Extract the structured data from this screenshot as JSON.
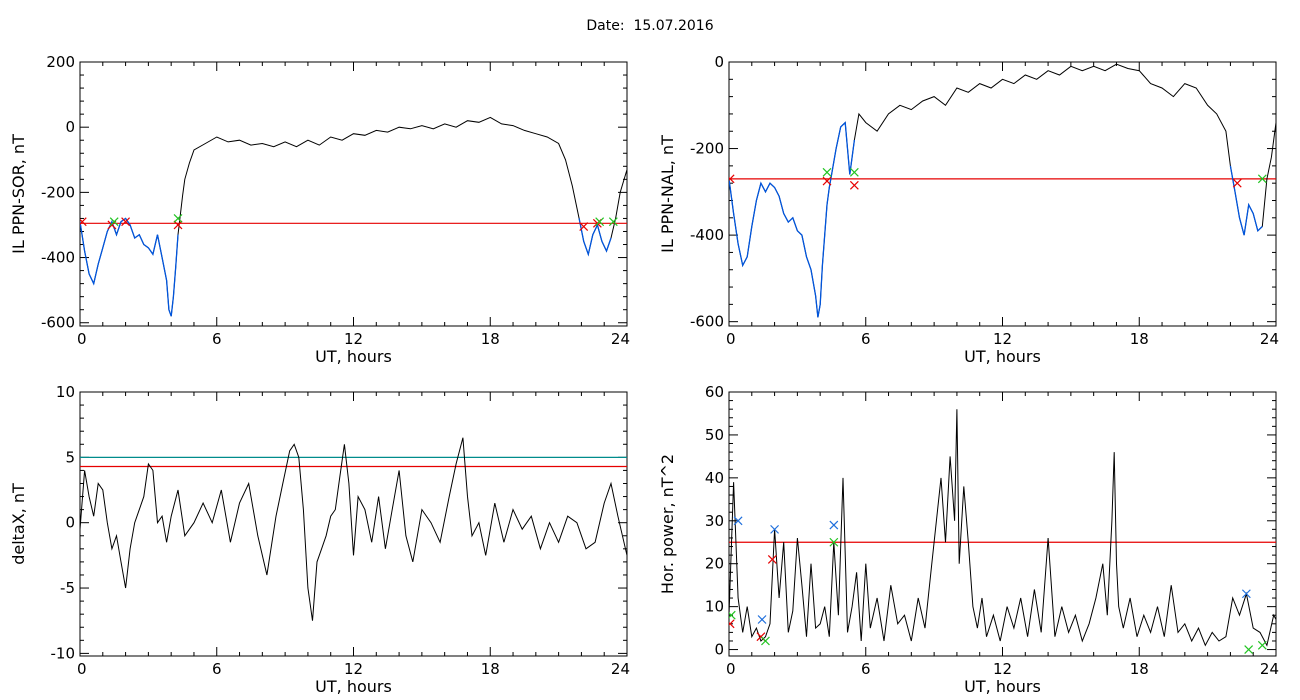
{
  "header": {
    "date_label": "Date:",
    "date_value": "15.07.2016"
  },
  "colors": {
    "trace": "#000000",
    "threshold": "#e60000",
    "threshold_upper": "#008c8c",
    "dip": "#0055dd",
    "marker_red": "#e60000",
    "marker_green": "#22c422",
    "marker_blue": "#1f6fdc"
  },
  "chart_data": [
    {
      "id": "sor",
      "type": "line",
      "xlabel": "UT, hours",
      "ylabel": "IL PPN-SOR, nT",
      "xlim": [
        0,
        24
      ],
      "ylim": [
        -610,
        200
      ],
      "xticks": [
        0,
        6,
        12,
        18,
        24
      ],
      "yticks": [
        200,
        0,
        -200,
        -400,
        -600
      ],
      "threshold": -295,
      "series": {
        "x": [
          0,
          0.2,
          0.4,
          0.6,
          0.8,
          1.0,
          1.2,
          1.4,
          1.6,
          1.8,
          2.0,
          2.2,
          2.4,
          2.6,
          2.8,
          3.0,
          3.2,
          3.4,
          3.6,
          3.8,
          3.9,
          4.0,
          4.1,
          4.2,
          4.3,
          4.4,
          4.5,
          4.6,
          4.8,
          5.0,
          5.5,
          6.0,
          6.5,
          7.0,
          7.5,
          8.0,
          8.5,
          9.0,
          9.5,
          10.0,
          10.5,
          11.0,
          11.5,
          12.0,
          12.5,
          13.0,
          13.5,
          14.0,
          14.5,
          15.0,
          15.5,
          16.0,
          16.5,
          17.0,
          17.5,
          18.0,
          18.5,
          19.0,
          19.5,
          20.0,
          20.5,
          21.0,
          21.3,
          21.6,
          21.9,
          22.1,
          22.3,
          22.5,
          22.7,
          22.9,
          23.1,
          23.3,
          23.5,
          23.7,
          24.0
        ],
        "y": [
          -290,
          -380,
          -450,
          -480,
          -420,
          -370,
          -320,
          -290,
          -330,
          -290,
          -280,
          -300,
          -340,
          -330,
          -360,
          -370,
          -390,
          -330,
          -400,
          -470,
          -560,
          -580,
          -520,
          -430,
          -330,
          -270,
          -210,
          -160,
          -110,
          -70,
          -50,
          -30,
          -45,
          -40,
          -55,
          -50,
          -60,
          -45,
          -60,
          -40,
          -55,
          -30,
          -40,
          -20,
          -25,
          -10,
          -15,
          0,
          -5,
          5,
          -5,
          10,
          0,
          20,
          15,
          30,
          10,
          5,
          -10,
          -20,
          -30,
          -50,
          -100,
          -180,
          -280,
          -350,
          -390,
          -330,
          -300,
          -350,
          -380,
          -340,
          -280,
          -200,
          -130
        ]
      },
      "dips": [
        [
          0,
          4.3
        ],
        [
          21.9,
          23.4
        ]
      ],
      "markers": [
        {
          "x": 0.1,
          "y": -290,
          "color": "red"
        },
        {
          "x": 1.4,
          "y": -300,
          "color": "red"
        },
        {
          "x": 1.5,
          "y": -290,
          "color": "green"
        },
        {
          "x": 2.0,
          "y": -290,
          "color": "red"
        },
        {
          "x": 4.3,
          "y": -300,
          "color": "red"
        },
        {
          "x": 4.3,
          "y": -280,
          "color": "green"
        },
        {
          "x": 22.1,
          "y": -305,
          "color": "red"
        },
        {
          "x": 22.7,
          "y": -295,
          "color": "red"
        },
        {
          "x": 22.8,
          "y": -290,
          "color": "green"
        },
        {
          "x": 23.4,
          "y": -290,
          "color": "green"
        }
      ]
    },
    {
      "id": "nal",
      "type": "line",
      "xlabel": "UT, hours",
      "ylabel": "IL PPN-NAL, nT",
      "xlim": [
        0,
        24
      ],
      "ylim": [
        -610,
        0
      ],
      "xticks": [
        0,
        6,
        12,
        18,
        24
      ],
      "yticks": [
        0,
        -200,
        -400,
        -600
      ],
      "threshold": -270,
      "series": {
        "x": [
          0,
          0.2,
          0.4,
          0.6,
          0.8,
          1.0,
          1.2,
          1.4,
          1.6,
          1.8,
          2.0,
          2.2,
          2.4,
          2.6,
          2.8,
          3.0,
          3.2,
          3.4,
          3.6,
          3.8,
          3.9,
          4.0,
          4.1,
          4.2,
          4.3,
          4.4,
          4.5,
          4.7,
          4.9,
          5.1,
          5.3,
          5.5,
          5.7,
          6.0,
          6.5,
          7.0,
          7.5,
          8.0,
          8.5,
          9.0,
          9.5,
          10.0,
          10.5,
          11.0,
          11.5,
          12.0,
          12.5,
          13.0,
          13.5,
          14.0,
          14.5,
          15.0,
          15.5,
          16.0,
          16.5,
          17.0,
          17.5,
          18.0,
          18.5,
          19.0,
          19.5,
          20.0,
          20.5,
          21.0,
          21.4,
          21.8,
          22.0,
          22.2,
          22.4,
          22.6,
          22.8,
          23.0,
          23.2,
          23.4,
          23.6,
          23.8,
          24.0
        ],
        "y": [
          -270,
          -350,
          -420,
          -470,
          -450,
          -380,
          -320,
          -280,
          -300,
          -280,
          -290,
          -310,
          -350,
          -370,
          -360,
          -390,
          -400,
          -450,
          -480,
          -540,
          -590,
          -560,
          -470,
          -400,
          -330,
          -290,
          -260,
          -200,
          -150,
          -140,
          -260,
          -180,
          -120,
          -140,
          -160,
          -120,
          -100,
          -110,
          -90,
          -80,
          -100,
          -60,
          -70,
          -50,
          -60,
          -40,
          -50,
          -30,
          -40,
          -20,
          -30,
          -10,
          -20,
          -10,
          -20,
          -5,
          -15,
          -20,
          -50,
          -60,
          -80,
          -50,
          -60,
          -100,
          -120,
          -160,
          -240,
          -300,
          -360,
          -400,
          -330,
          -350,
          -390,
          -380,
          -270,
          -220,
          -140
        ]
      },
      "dips": [
        [
          0,
          5.5
        ],
        [
          21.9,
          23.4
        ]
      ],
      "markers": [
        {
          "x": 0.05,
          "y": -270,
          "color": "red"
        },
        {
          "x": 4.3,
          "y": -275,
          "color": "red"
        },
        {
          "x": 4.3,
          "y": -255,
          "color": "green"
        },
        {
          "x": 5.5,
          "y": -285,
          "color": "red"
        },
        {
          "x": 5.5,
          "y": -255,
          "color": "green"
        },
        {
          "x": 22.3,
          "y": -280,
          "color": "red"
        },
        {
          "x": 23.4,
          "y": -270,
          "color": "green"
        }
      ]
    },
    {
      "id": "deltax",
      "type": "line",
      "xlabel": "UT, hours",
      "ylabel": "deltaX, nT",
      "xlim": [
        0,
        24
      ],
      "ylim": [
        -10.2,
        10
      ],
      "xticks": [
        0,
        6,
        12,
        18,
        24
      ],
      "yticks": [
        10,
        5,
        0,
        -5,
        -10
      ],
      "threshold": 4.3,
      "threshold_upper": 5.0,
      "series": {
        "x": [
          0,
          0.2,
          0.4,
          0.6,
          0.8,
          1.0,
          1.2,
          1.4,
          1.6,
          1.8,
          2.0,
          2.2,
          2.4,
          2.6,
          2.8,
          3.0,
          3.2,
          3.4,
          3.6,
          3.8,
          4.0,
          4.3,
          4.6,
          5.0,
          5.4,
          5.8,
          6.2,
          6.6,
          7.0,
          7.4,
          7.8,
          8.2,
          8.6,
          8.9,
          9.2,
          9.4,
          9.6,
          9.8,
          10.0,
          10.2,
          10.4,
          10.6,
          10.8,
          11.0,
          11.2,
          11.4,
          11.6,
          11.8,
          12.0,
          12.2,
          12.5,
          12.8,
          13.1,
          13.4,
          13.7,
          14.0,
          14.3,
          14.6,
          15.0,
          15.4,
          15.8,
          16.2,
          16.5,
          16.8,
          17.0,
          17.2,
          17.5,
          17.8,
          18.2,
          18.6,
          19.0,
          19.4,
          19.8,
          20.2,
          20.6,
          21.0,
          21.4,
          21.8,
          22.2,
          22.6,
          23.0,
          23.3,
          23.6,
          24.0
        ],
        "y": [
          -0.5,
          4.0,
          2.0,
          0.5,
          3.0,
          2.5,
          0.0,
          -2.0,
          -1.0,
          -3.0,
          -5.0,
          -2.0,
          0.0,
          1.0,
          2.0,
          4.5,
          4.0,
          0.0,
          0.5,
          -1.5,
          0.5,
          2.5,
          -1.0,
          0.0,
          1.5,
          0.0,
          2.5,
          -1.5,
          1.5,
          3.0,
          -1.0,
          -4.0,
          0.5,
          3.0,
          5.5,
          6.0,
          5.0,
          1.0,
          -5.0,
          -7.5,
          -3.0,
          -2.0,
          -1.0,
          0.5,
          1.0,
          3.5,
          6.0,
          3.0,
          -2.5,
          2.0,
          1.0,
          -1.5,
          2.0,
          -2.0,
          1.0,
          4.0,
          -1.0,
          -3.0,
          1.0,
          0.0,
          -1.5,
          2.0,
          4.5,
          6.5,
          2.0,
          -1.0,
          0.0,
          -2.5,
          1.5,
          -1.5,
          1.0,
          -0.5,
          0.5,
          -2.0,
          0.0,
          -1.5,
          0.5,
          0.0,
          -2.0,
          -1.5,
          1.5,
          3.0,
          0.5,
          -2.5
        ]
      },
      "dips": [],
      "markers": []
    },
    {
      "id": "hpower",
      "type": "line",
      "xlabel": "UT, hours",
      "ylabel": "Hor. power, nT^2",
      "xlim": [
        0,
        24
      ],
      "ylim": [
        -1.5,
        60
      ],
      "xticks": [
        0,
        6,
        12,
        18,
        24
      ],
      "yticks": [
        60,
        50,
        40,
        30,
        20,
        10,
        0
      ],
      "threshold": 25,
      "series": {
        "x": [
          0,
          0.2,
          0.4,
          0.6,
          0.8,
          1.0,
          1.2,
          1.4,
          1.6,
          1.8,
          2.0,
          2.2,
          2.4,
          2.6,
          2.8,
          3.0,
          3.2,
          3.4,
          3.6,
          3.8,
          4.0,
          4.2,
          4.4,
          4.6,
          4.8,
          5.0,
          5.2,
          5.4,
          5.6,
          5.8,
          6.0,
          6.2,
          6.5,
          6.8,
          7.1,
          7.4,
          7.7,
          8.0,
          8.3,
          8.6,
          8.9,
          9.1,
          9.3,
          9.5,
          9.7,
          9.9,
          10.0,
          10.1,
          10.3,
          10.5,
          10.7,
          10.9,
          11.1,
          11.3,
          11.6,
          11.9,
          12.2,
          12.5,
          12.8,
          13.1,
          13.4,
          13.7,
          14.0,
          14.3,
          14.6,
          14.9,
          15.2,
          15.5,
          15.8,
          16.1,
          16.4,
          16.6,
          16.8,
          16.9,
          17.0,
          17.1,
          17.3,
          17.6,
          17.9,
          18.2,
          18.5,
          18.8,
          19.1,
          19.4,
          19.7,
          20.0,
          20.3,
          20.6,
          20.9,
          21.2,
          21.5,
          21.8,
          22.1,
          22.4,
          22.7,
          23.0,
          23.3,
          23.6,
          23.9,
          24.0
        ],
        "y": [
          8,
          39,
          12,
          4,
          10,
          3,
          5,
          2,
          3,
          6,
          28,
          12,
          25,
          4,
          9,
          26,
          15,
          3,
          20,
          5,
          6,
          10,
          3,
          25,
          8,
          40,
          4,
          10,
          18,
          2,
          20,
          5,
          12,
          2,
          15,
          6,
          8,
          2,
          12,
          5,
          20,
          30,
          40,
          25,
          45,
          30,
          56,
          20,
          38,
          25,
          10,
          5,
          12,
          3,
          8,
          2,
          10,
          5,
          12,
          3,
          14,
          4,
          26,
          3,
          10,
          4,
          8,
          2,
          6,
          12,
          20,
          8,
          30,
          46,
          20,
          10,
          5,
          12,
          3,
          8,
          4,
          10,
          3,
          15,
          4,
          6,
          2,
          5,
          1,
          4,
          2,
          3,
          12,
          8,
          13,
          5,
          4,
          1,
          8,
          7
        ]
      },
      "dips": [],
      "markers": [
        {
          "x": 0.05,
          "y": 6,
          "color": "red"
        },
        {
          "x": 0.1,
          "y": 8,
          "color": "green"
        },
        {
          "x": 0.4,
          "y": 30,
          "color": "blue"
        },
        {
          "x": 1.4,
          "y": 3,
          "color": "red"
        },
        {
          "x": 1.45,
          "y": 7,
          "color": "blue"
        },
        {
          "x": 1.6,
          "y": 2,
          "color": "green"
        },
        {
          "x": 1.9,
          "y": 21,
          "color": "red"
        },
        {
          "x": 2.0,
          "y": 28,
          "color": "blue"
        },
        {
          "x": 4.6,
          "y": 29,
          "color": "blue"
        },
        {
          "x": 4.6,
          "y": 25,
          "color": "green"
        },
        {
          "x": 22.7,
          "y": 13,
          "color": "blue"
        },
        {
          "x": 22.8,
          "y": 0,
          "color": "green"
        },
        {
          "x": 23.4,
          "y": 1,
          "color": "green"
        }
      ]
    }
  ]
}
